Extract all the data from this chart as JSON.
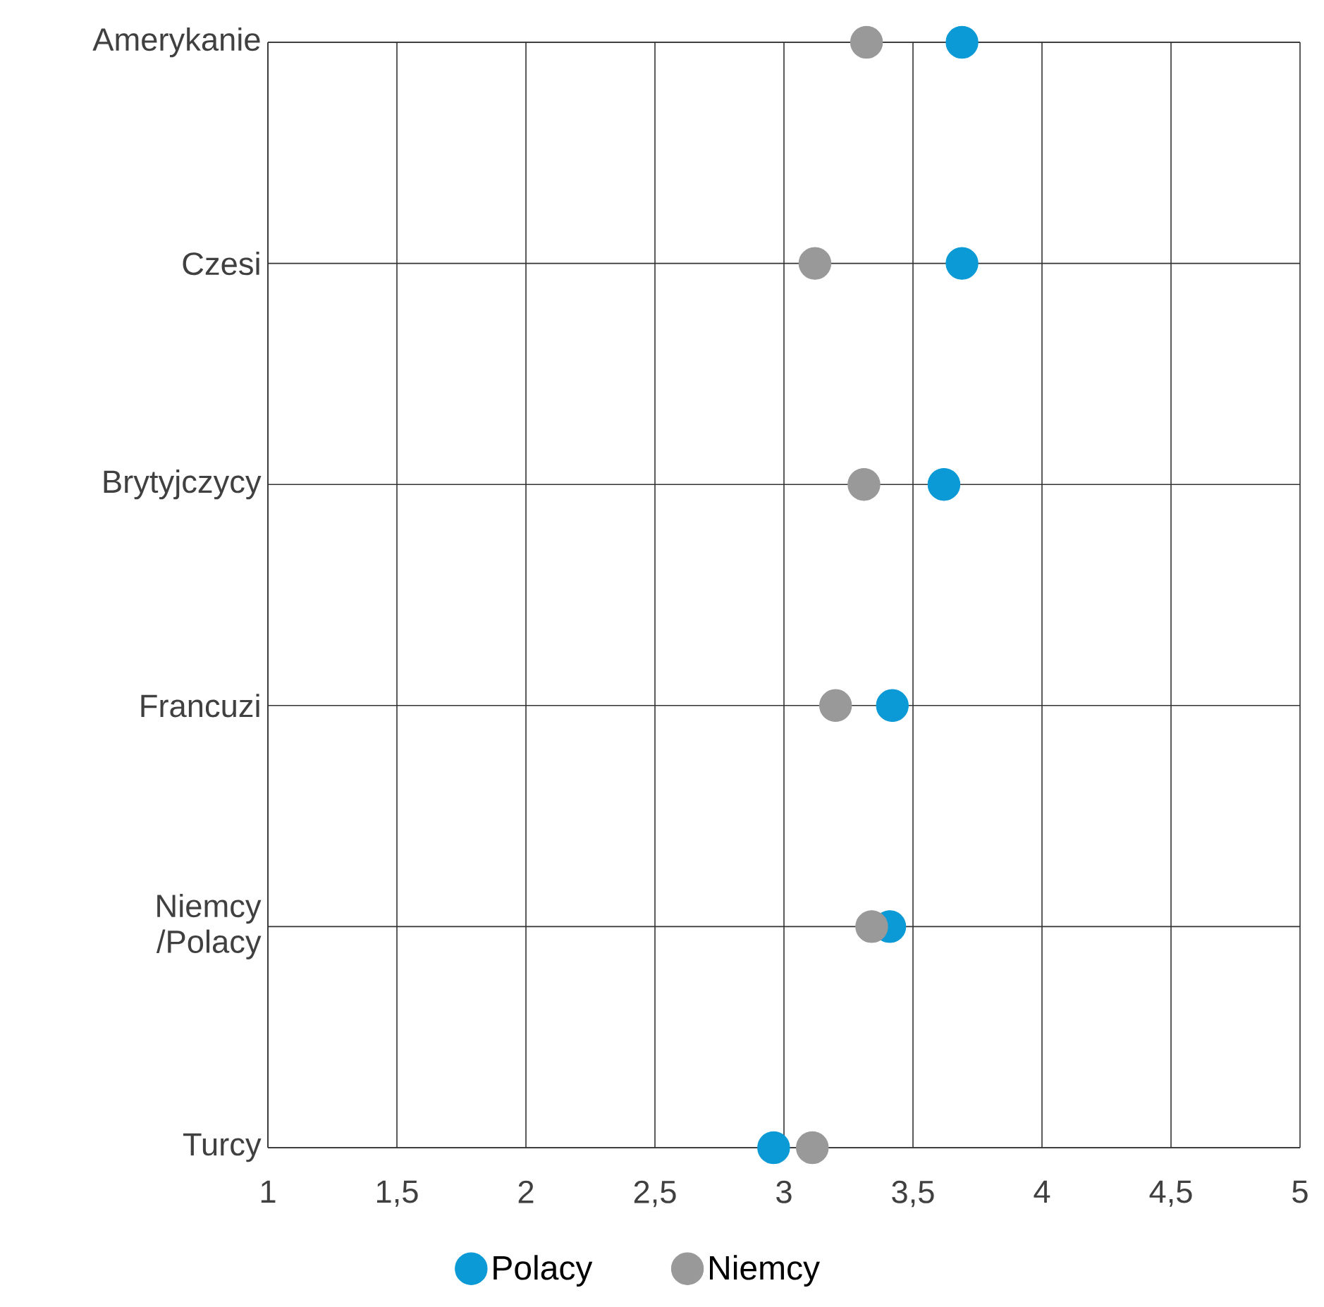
{
  "chart_data": {
    "type": "scatter",
    "categories": [
      "Amerykanie",
      "Czesi",
      "Brytyjczycy",
      "Francuzi",
      "Niemcy /Polacy",
      "Turcy"
    ],
    "orientation": "horizontal",
    "series": [
      {
        "name": "Polacy",
        "color": "#0b9ad6",
        "values": [
          3.69,
          3.69,
          3.62,
          3.42,
          3.41,
          2.96
        ]
      },
      {
        "name": "Niemcy",
        "color": "#999999",
        "values": [
          3.32,
          3.12,
          3.31,
          3.2,
          3.34,
          3.11
        ]
      }
    ],
    "xlim": [
      1,
      5
    ],
    "xticks": [
      1,
      {
        "value": 1.5,
        "label": "1,5"
      },
      2,
      {
        "value": 2.5,
        "label": "2,5"
      },
      3,
      {
        "value": 3.5,
        "label": "3,5"
      },
      4,
      {
        "value": 4.5,
        "label": "4,5"
      },
      5
    ],
    "grid": true,
    "legend": "bottom",
    "marker": "circle"
  }
}
